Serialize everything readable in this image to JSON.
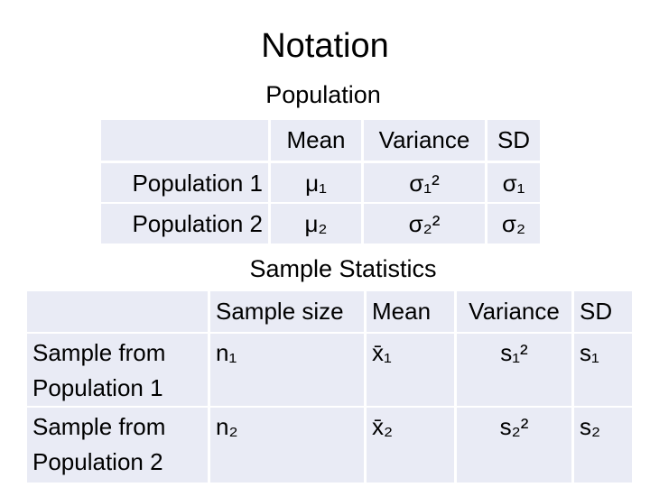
{
  "title": "Notation",
  "population": {
    "heading": "Population",
    "table": {
      "header": [
        "",
        "Mean",
        "Variance",
        "SD"
      ],
      "rows": [
        [
          "Population 1",
          "μ₁",
          "σ₁²",
          "σ₁"
        ],
        [
          "Population 2",
          "μ₂",
          "σ₂²",
          "σ₂"
        ]
      ]
    }
  },
  "sample": {
    "heading": "Sample Statistics",
    "table": {
      "header": [
        "",
        "Sample size",
        "Mean",
        "Variance",
        "SD"
      ],
      "rows": [
        [
          "Sample from Population 1",
          "n₁",
          "x̄₁",
          "s₁²",
          "s₁"
        ],
        [
          "Sample from Population 2",
          "n₂",
          "x̄₂",
          "s₂²",
          "s₂"
        ]
      ]
    }
  }
}
